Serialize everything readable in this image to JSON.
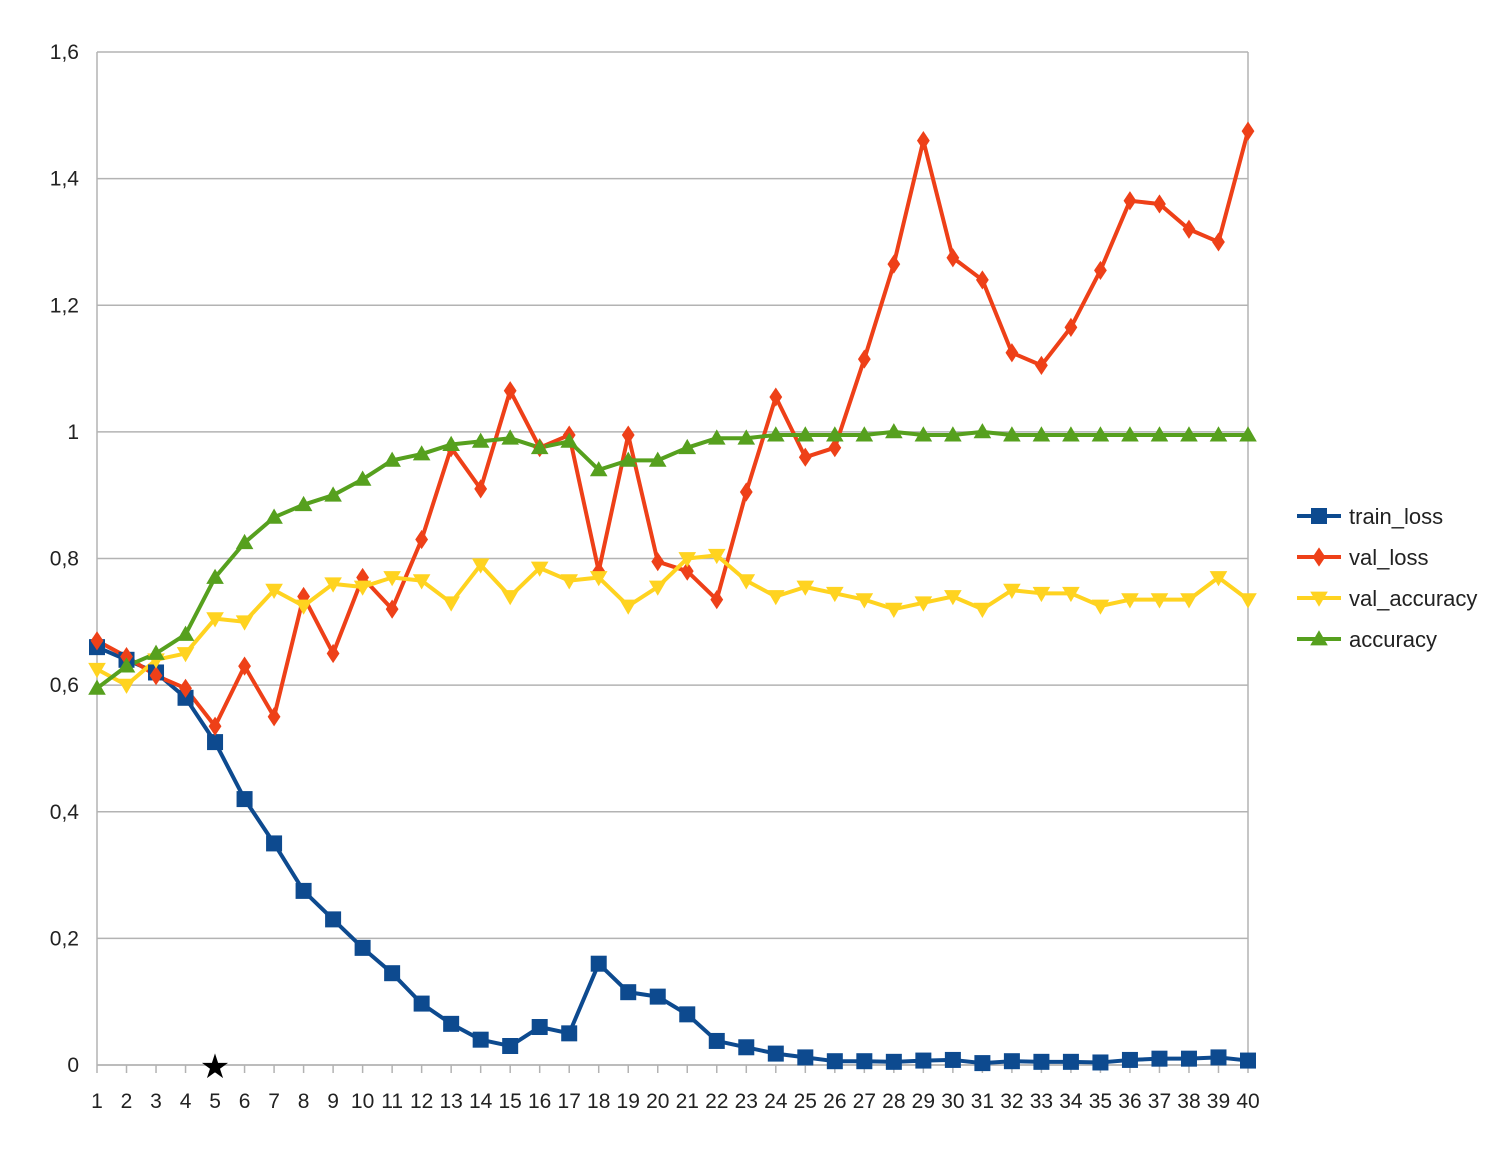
{
  "chart_data": {
    "type": "line",
    "x": [
      1,
      2,
      3,
      4,
      5,
      6,
      7,
      8,
      9,
      10,
      11,
      12,
      13,
      14,
      15,
      16,
      17,
      18,
      19,
      20,
      21,
      22,
      23,
      24,
      25,
      26,
      27,
      28,
      29,
      30,
      31,
      32,
      33,
      34,
      35,
      36,
      37,
      38,
      39,
      40
    ],
    "x_tick_labels": [
      "1",
      "2",
      "3",
      "4",
      "5",
      "6",
      "7",
      "8",
      "9",
      "10",
      "11",
      "12",
      "13",
      "14",
      "15",
      "16",
      "17",
      "18",
      "19",
      "20",
      "21",
      "22",
      "23",
      "24",
      "25",
      "26",
      "27",
      "28",
      "29",
      "30",
      "31",
      "32",
      "33",
      "34",
      "35",
      "36",
      "37",
      "38",
      "39",
      "40"
    ],
    "ylim": [
      0,
      1.6
    ],
    "y_ticks": [
      0,
      0.2,
      0.4,
      0.6,
      0.8,
      1,
      1.2,
      1.4,
      1.6
    ],
    "y_tick_labels": [
      "0",
      "0,2",
      "0,4",
      "0,6",
      "0,8",
      "1",
      "1,2",
      "1,4",
      "1,6"
    ],
    "grid": "horizontal",
    "legend_position": "right",
    "annotation_marker": {
      "symbol": "★",
      "x": 5
    },
    "series": [
      {
        "name": "train_loss",
        "color": "#0d4a8f",
        "marker": "square",
        "values": [
          0.66,
          0.64,
          0.62,
          0.58,
          0.51,
          0.42,
          0.35,
          0.275,
          0.23,
          0.185,
          0.145,
          0.097,
          0.065,
          0.04,
          0.03,
          0.06,
          0.05,
          0.16,
          0.115,
          0.108,
          0.08,
          0.038,
          0.028,
          0.018,
          0.012,
          0.006,
          0.006,
          0.005,
          0.007,
          0.008,
          0.003,
          0.006,
          0.005,
          0.005,
          0.004,
          0.008,
          0.01,
          0.01,
          0.012,
          0.007
        ]
      },
      {
        "name": "val_loss",
        "color": "#ee4018",
        "marker": "diamond",
        "values": [
          0.67,
          0.645,
          0.615,
          0.595,
          0.535,
          0.63,
          0.55,
          0.74,
          0.65,
          0.77,
          0.72,
          0.83,
          0.975,
          0.91,
          1.065,
          0.975,
          0.995,
          0.78,
          0.995,
          0.795,
          0.78,
          0.735,
          0.905,
          1.055,
          0.96,
          0.975,
          1.115,
          1.265,
          1.46,
          1.275,
          1.24,
          1.125,
          1.105,
          1.165,
          1.255,
          1.365,
          1.36,
          1.32,
          1.3,
          1.475
        ]
      },
      {
        "name": "val_accuracy",
        "color": "#ffd320",
        "marker": "triangle-down",
        "values": [
          0.625,
          0.6,
          0.64,
          0.65,
          0.705,
          0.7,
          0.75,
          0.725,
          0.76,
          0.755,
          0.77,
          0.765,
          0.73,
          0.79,
          0.74,
          0.785,
          0.765,
          0.77,
          0.725,
          0.755,
          0.8,
          0.805,
          0.765,
          0.74,
          0.755,
          0.745,
          0.735,
          0.72,
          0.73,
          0.74,
          0.72,
          0.75,
          0.745,
          0.745,
          0.725,
          0.735,
          0.735,
          0.735,
          0.77,
          0.735
        ]
      },
      {
        "name": "accuracy",
        "color": "#56a01e",
        "marker": "triangle-up",
        "values": [
          0.595,
          0.63,
          0.65,
          0.68,
          0.77,
          0.825,
          0.865,
          0.885,
          0.9,
          0.925,
          0.955,
          0.965,
          0.98,
          0.985,
          0.99,
          0.975,
          0.985,
          0.94,
          0.955,
          0.955,
          0.975,
          0.99,
          0.99,
          0.995,
          0.995,
          0.995,
          0.995,
          1.0,
          0.995,
          0.995,
          1.0,
          0.995,
          0.995,
          0.995,
          0.995,
          0.995,
          0.995,
          0.995,
          0.995,
          0.995
        ]
      }
    ]
  }
}
